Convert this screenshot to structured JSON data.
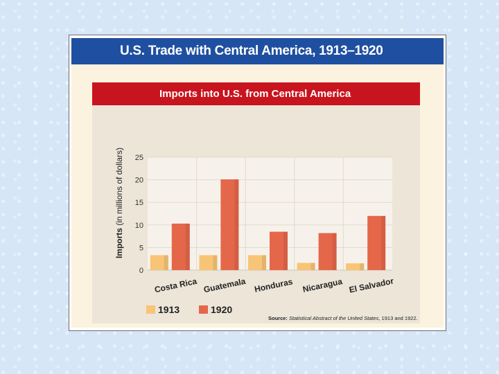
{
  "header": {
    "title": "U.S. Trade with Central America, 1913–1920"
  },
  "chart_data": {
    "type": "bar",
    "title": "Imports into U.S. from Central America",
    "ylabel_bold": "Imports",
    "ylabel_rest": " (in millions of dollars)",
    "xlabel": "",
    "categories": [
      "Costa Rica",
      "Guatemala",
      "Honduras",
      "Nicaragua",
      "El Salvador"
    ],
    "series": [
      {
        "name": "1913",
        "values": [
          3.3,
          3.3,
          3.3,
          1.6,
          1.5
        ]
      },
      {
        "name": "1920",
        "values": [
          10.3,
          20.1,
          8.5,
          8.2,
          12.0
        ]
      }
    ],
    "ylim": [
      0,
      25
    ],
    "yticks": [
      0,
      5,
      10,
      15,
      20,
      25
    ],
    "grid": true,
    "legend_position": "bottom-left",
    "colors": {
      "1913": "#f8c475",
      "1920": "#e5674a"
    },
    "source_prefix": "Source: ",
    "source_title": "Statistical Abstract of the United States",
    "source_suffix": ", 1913 and 1922."
  }
}
